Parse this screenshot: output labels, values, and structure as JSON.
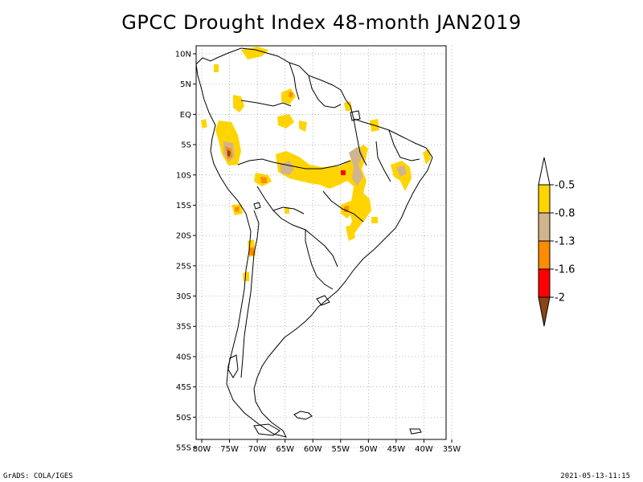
{
  "title": "GPCC Drought Index 48-month JAN2019",
  "footer": {
    "left": "GrADS: COLA/IGES",
    "right": "2021-05-13-11:15"
  },
  "map": {
    "lat_labels": [
      "10N",
      "5N",
      "EQ",
      "5S",
      "10S",
      "15S",
      "20S",
      "25S",
      "30S",
      "35S",
      "40S",
      "45S",
      "50S",
      "55S"
    ],
    "lon_labels": [
      "80W",
      "75W",
      "70W",
      "65W",
      "60W",
      "55W",
      "50W",
      "45W",
      "40W",
      "35W"
    ],
    "extent": {
      "lon": [
        -80,
        -35
      ],
      "lat": [
        -55,
        10
      ]
    }
  },
  "legend": {
    "labels": [
      "-0.5",
      "-0.8",
      "-1.3",
      "-1.6",
      "-2"
    ],
    "colors": {
      "above": "#ffffff",
      "class1": "#ffd400",
      "class2": "#d2b48c",
      "class3": "#ff8c00",
      "class4": "#ff0000",
      "class5": "#8b4513"
    }
  }
}
